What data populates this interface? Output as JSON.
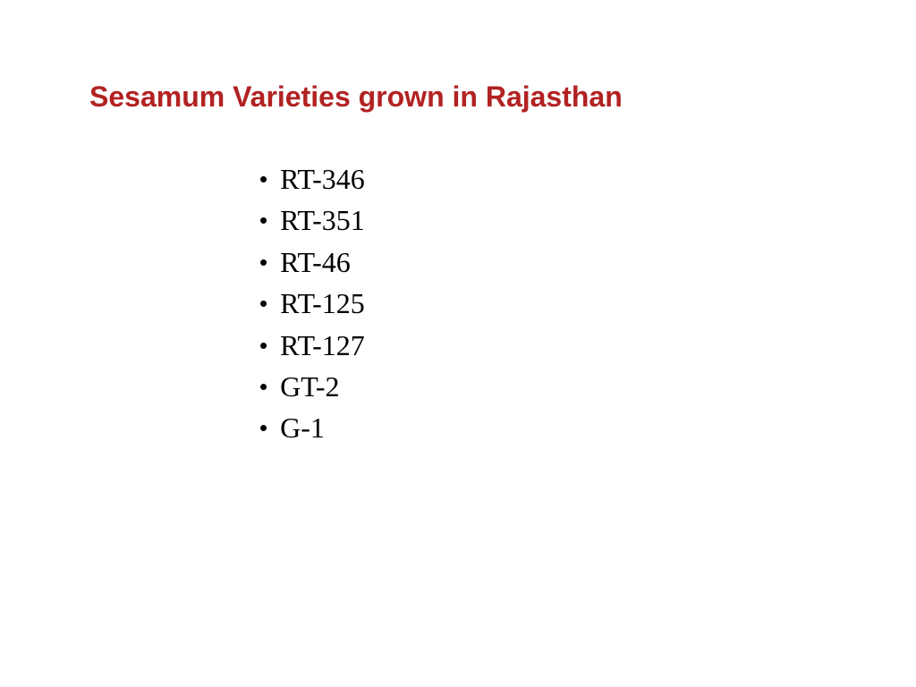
{
  "slide": {
    "title": "Sesamum Varieties  grown in Rajasthan",
    "title_color": "#b22222",
    "title_fontsize": 32,
    "title_fontweight": "bold",
    "background_color": "#ffffff",
    "list": {
      "bullet_char": "•",
      "text_color": "#000000",
      "text_fontsize": 32,
      "text_fontfamily": "Times New Roman",
      "items": [
        "RT-346",
        "RT-351",
        "RT-46",
        "RT-125",
        "RT-127",
        "GT-2",
        "G-1"
      ]
    }
  }
}
